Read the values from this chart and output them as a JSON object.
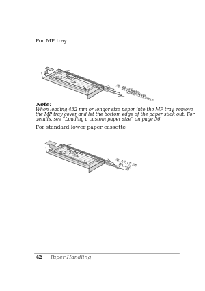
{
  "bg_color": "#ffffff",
  "title_text": "For MP tray",
  "note_bold": "Note:",
  "note_body1": "When loading 432 mm or longer size paper into the MP tray, remove",
  "note_body2": "the MP tray cover and let the bottom edge of the paper stick out. For",
  "note_body3": "details, see “Loading a custom paper size” on page 56.",
  "section2_text": "For standard lower paper cassette",
  "footer_page": "42",
  "footer_title": "Paper Handling",
  "mp_dim_top": "76.2~304.8mm",
  "mp_dim_labels": [
    "A6, A5, A4mm",
    "76.2~355.6mm",
    "254.0~355.6mm"
  ],
  "cassette_dim_top": "76.2~297mm",
  "cassette_dim_labels": [
    "A6, A4, LT, B5",
    "B4, LGL",
    "A3"
  ]
}
